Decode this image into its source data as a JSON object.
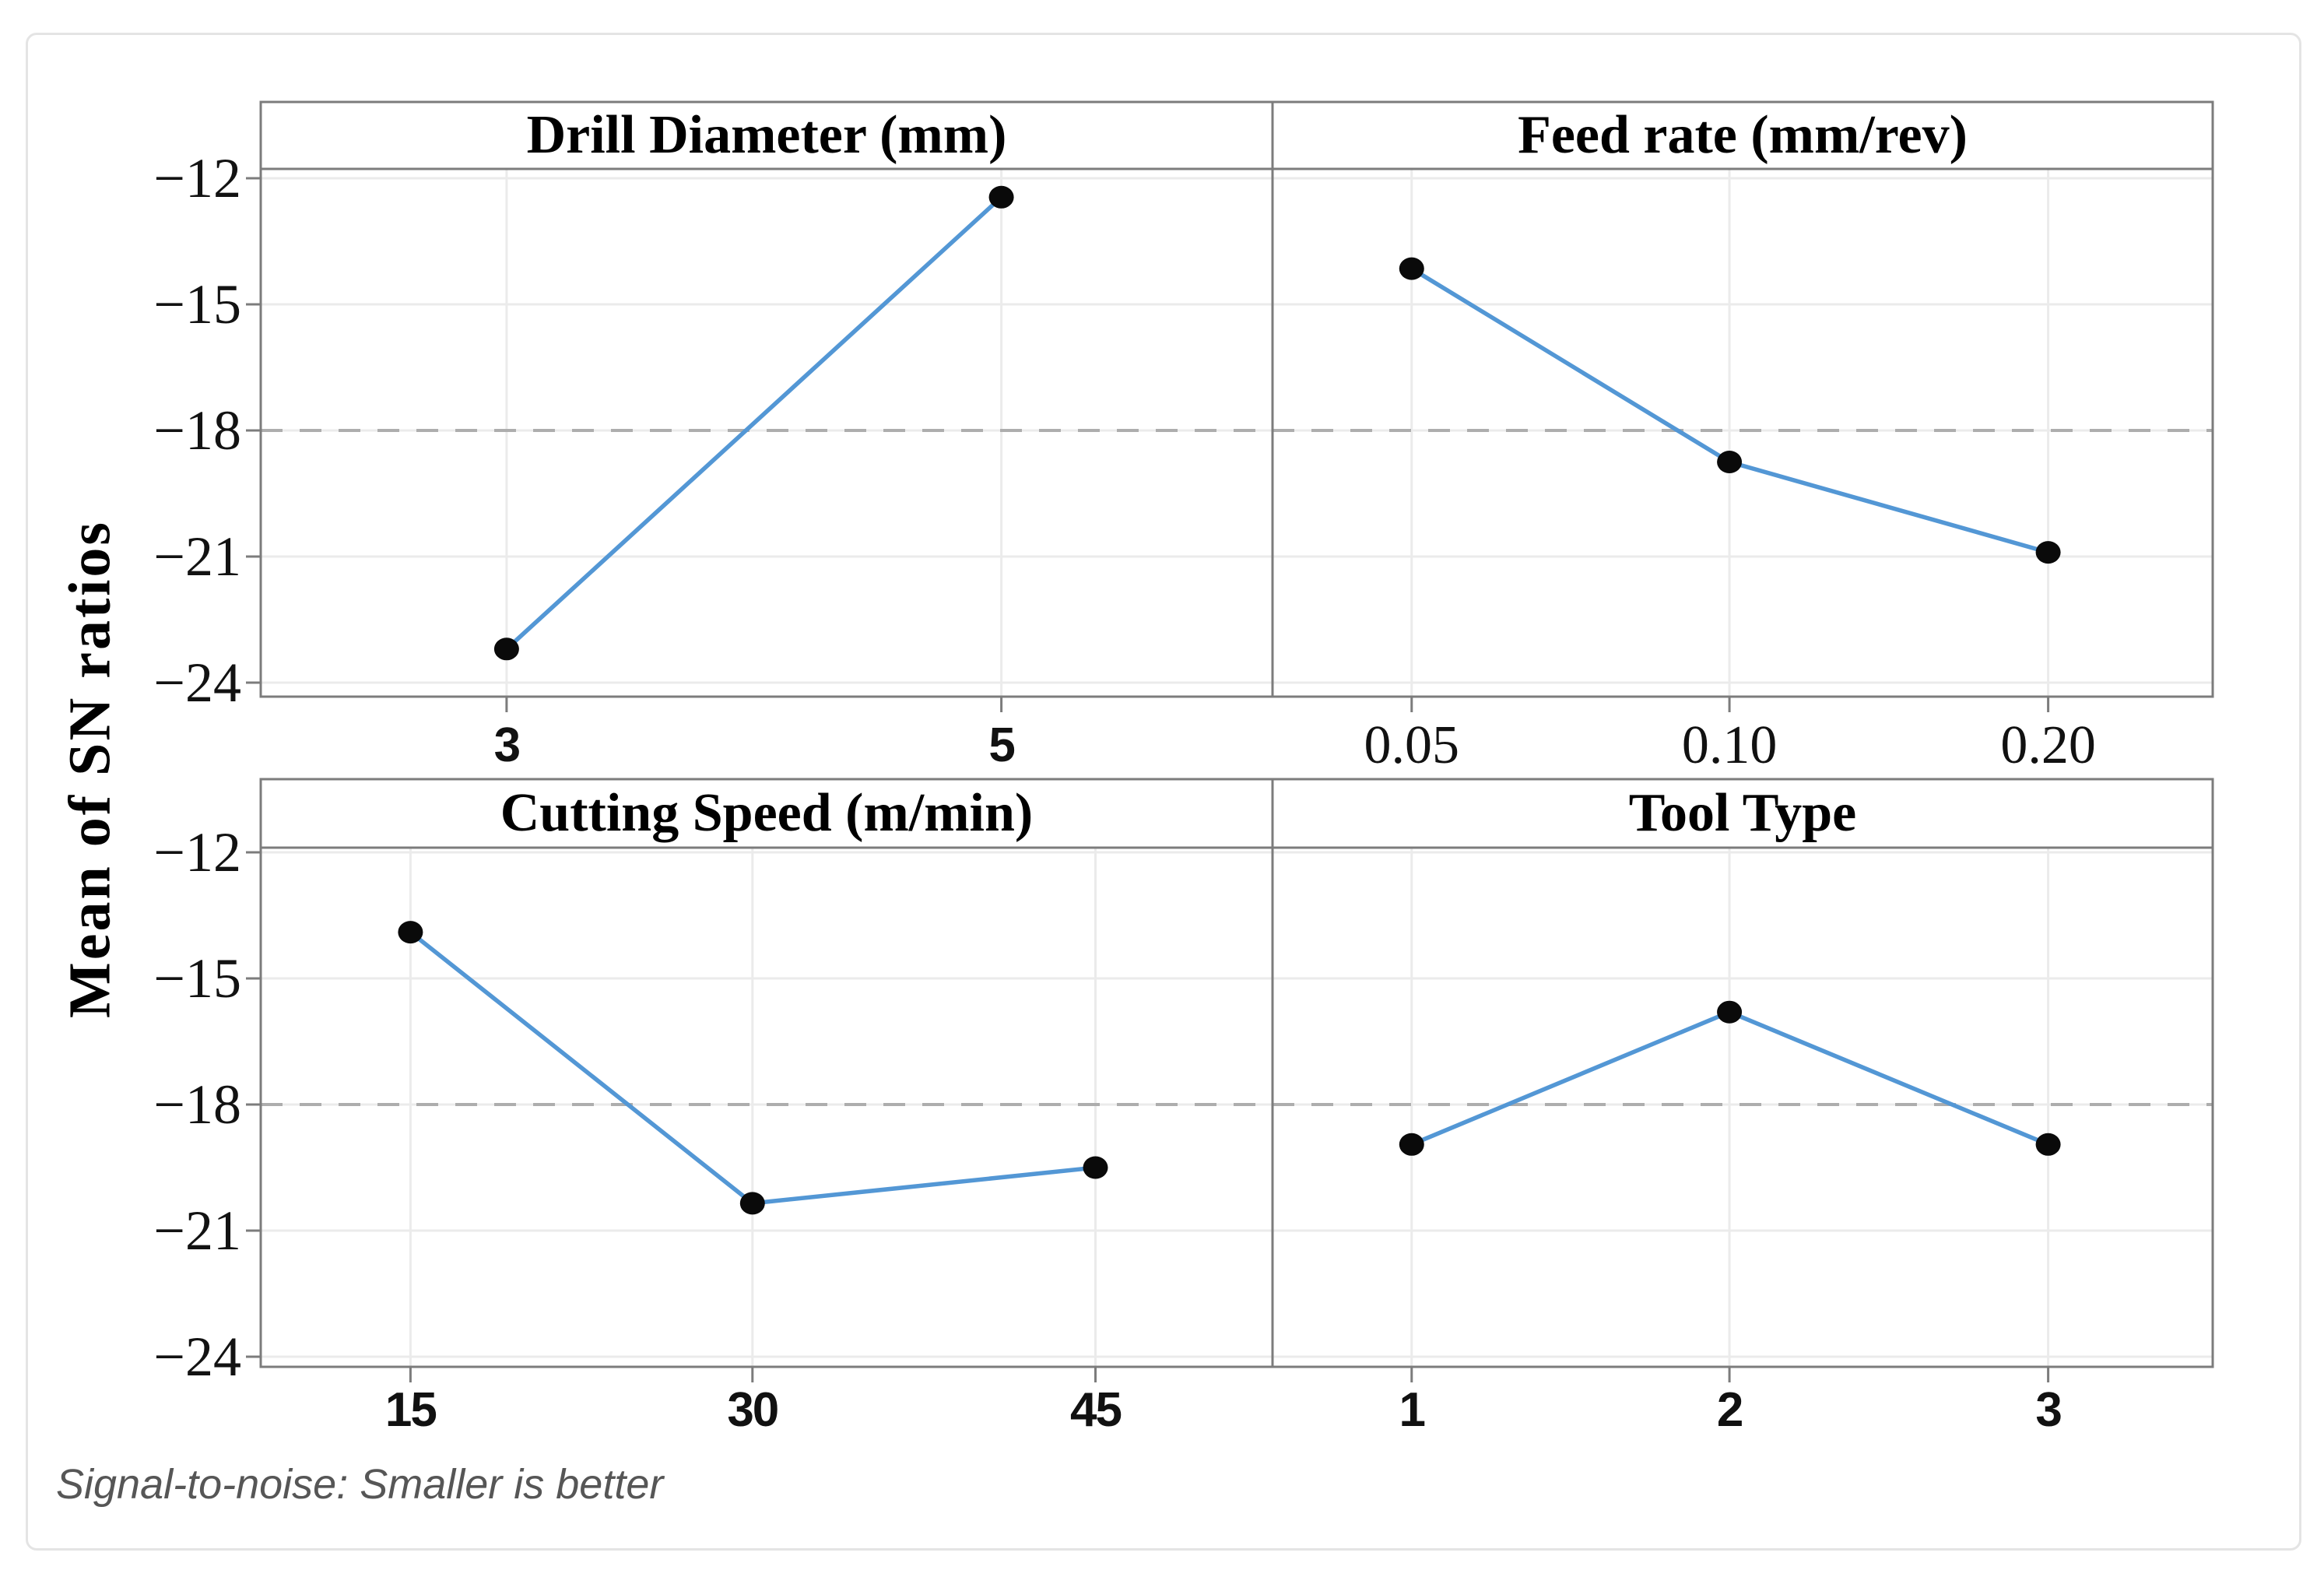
{
  "figure": {
    "ylabel": "Mean of SN ratios",
    "footer": "Signal-to-noise: Smaller is better",
    "y_tick_labels": [
      "−12",
      "−15",
      "−18",
      "−21",
      "−24"
    ],
    "colors": {
      "line": "#5397d5",
      "marker": "#0a0a0a",
      "reference_line": "#adadad",
      "gridline": "#ebebeb",
      "panel_border": "#7c7c7c",
      "outer_border": "#e4e4e4",
      "footer_text": "#565656"
    }
  },
  "chart_data": {
    "type": "line",
    "kind": "main-effects-plot",
    "title": "",
    "ylabel": "Mean of SN ratios",
    "y_ticks": [
      -12,
      -15,
      -18,
      -21,
      -24
    ],
    "ylim": [
      -24.35,
      -11.85
    ],
    "reference_line": -18,
    "grid": "on",
    "legend": "none",
    "note": "Signal-to-noise: Smaller is better",
    "panels": [
      {
        "title": "Drill Diameter (mm)",
        "categories": [
          "3",
          "5"
        ],
        "values": [
          -23.2,
          -12.45
        ]
      },
      {
        "title": "Feed rate (mm/rev)",
        "categories": [
          "0.05",
          "0.10",
          "0.20"
        ],
        "values": [
          -14.15,
          -18.75,
          -20.9
        ]
      },
      {
        "title": "Cutting Speed (m/min)",
        "categories": [
          "15",
          "30",
          "45"
        ],
        "values": [
          -13.9,
          -20.35,
          -19.5
        ]
      },
      {
        "title": "Tool Type",
        "categories": [
          "1",
          "2",
          "3"
        ],
        "values": [
          -18.95,
          -15.8,
          -18.95
        ]
      }
    ]
  }
}
